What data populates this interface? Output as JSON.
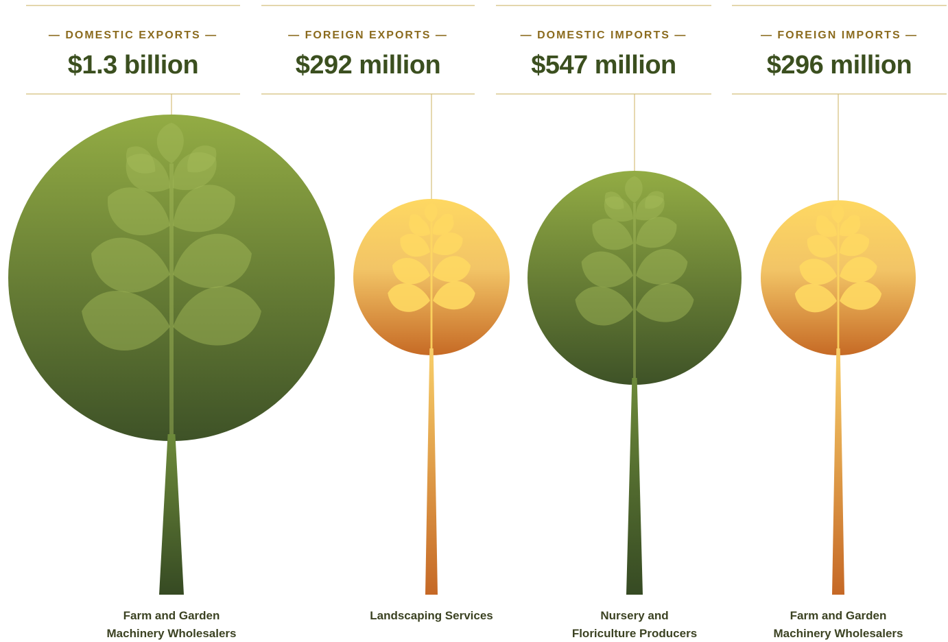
{
  "panels": [
    {
      "label": "— DOMESTIC EXPORTS —",
      "value": "$1.3 billion",
      "category": [
        "Farm and Garden",
        "Machinery Wholesalers"
      ]
    },
    {
      "label": "— FOREIGN EXPORTS —",
      "value": "$292 million",
      "category": [
        "Landscaping Services"
      ]
    },
    {
      "label": "— DOMESTIC IMPORTS —",
      "value": "$547 million",
      "category": [
        "Nursery and",
        "Floriculture Producers"
      ]
    },
    {
      "label": "— FOREIGN IMPORTS —",
      "value": "$296 million",
      "category": [
        "Farm and Garden",
        "Machinery Wholesalers"
      ]
    }
  ]
}
